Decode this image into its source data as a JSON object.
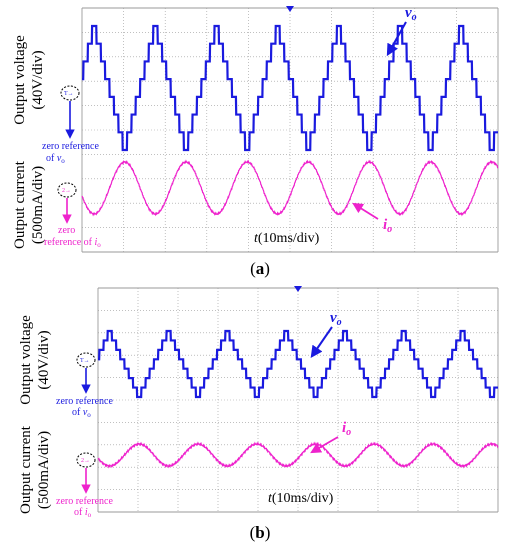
{
  "colors": {
    "voltage": "#1a1adf",
    "current": "#ee22cc",
    "grid": "#9a9a9a",
    "text": "#000000"
  },
  "panels": [
    {
      "label": "a",
      "ylabel_voltage": "Output voltage",
      "ylabel_voltage_div": "(40V/div)",
      "ylabel_current": "Output current",
      "ylabel_current_div": "(500mA/div)",
      "zero_ref_v_line1": "zero reference",
      "zero_ref_v_line2": "of",
      "zero_ref_v_sym": "v",
      "zero_ref_v_sub": "o",
      "zero_ref_i_line1": "zero",
      "zero_ref_i_line2": "reference of",
      "zero_ref_i_sym": "i",
      "zero_ref_i_sub": "o",
      "vo_sym": "v",
      "vo_sub": "o",
      "io_sym": "i",
      "io_sub": "o",
      "time_axis": "(10ms/div)",
      "time_sym": "t",
      "marker_v": "T→",
      "marker_i": "2→"
    },
    {
      "label": "b",
      "ylabel_voltage": "Output voltage",
      "ylabel_voltage_div": "(40V/div)",
      "ylabel_current": "Output current",
      "ylabel_current_div": "(500mA/div)",
      "zero_ref_v_line1": "zero reference",
      "zero_ref_v_line2": "of",
      "zero_ref_v_sym": "v",
      "zero_ref_v_sub": "o",
      "zero_ref_i_line1": "zero reference",
      "zero_ref_i_line2": "of",
      "zero_ref_i_sym": "i",
      "zero_ref_i_sub": "o",
      "vo_sym": "v",
      "vo_sub": "o",
      "io_sym": "i",
      "io_sub": "o",
      "time_axis": "(10ms/div)",
      "time_sym": "t",
      "marker_v": "T→",
      "marker_i": "2→"
    }
  ],
  "chart_data": [
    {
      "type": "line",
      "panel": "a",
      "x_unit": "ms",
      "x_per_div": 10,
      "divisions_x": 10,
      "grid": true,
      "series": [
        {
          "waveform": "staircase triangle",
          "period_ms": 14.7,
          "cycles_visible": 7,
          "amplitude_div": 3.0,
          "steps_per_half_cycle": 7
        },
        {
          "waveform": "sine",
          "period_ms": 14.7,
          "cycles_visible": 7,
          "amplitude_div": 0.9
        }
      ]
    },
    {
      "type": "line",
      "panel": "b",
      "x_unit": "ms",
      "x_per_div": 10,
      "divisions_x": 10,
      "grid": true,
      "series": [
        {
          "waveform": "staircase triangle",
          "period_ms": 14.7,
          "cycles_visible": 7,
          "amplitude_div": 2.2,
          "steps_per_half_cycle": 7
        },
        {
          "waveform": "sine",
          "period_ms": 14.7,
          "cycles_visible": 7,
          "amplitude_div": 0.4
        }
      ]
    }
  ]
}
